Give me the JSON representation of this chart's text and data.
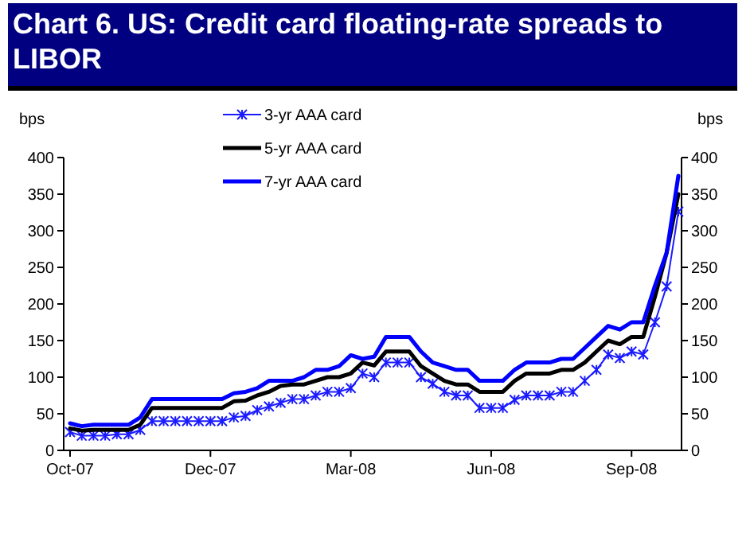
{
  "chart_data": {
    "type": "line",
    "title": "Chart 6. US: Credit card floating-rate spreads to LIBOR",
    "ylabel": "bps",
    "y2label": "bps",
    "categories": [
      "Oct-07",
      null,
      null,
      null,
      null,
      null,
      null,
      null,
      null,
      null,
      null,
      null,
      "Dec-07",
      null,
      null,
      null,
      null,
      null,
      null,
      null,
      null,
      null,
      null,
      null,
      "Mar-08",
      null,
      null,
      null,
      null,
      null,
      null,
      null,
      null,
      null,
      null,
      null,
      "Jun-08",
      null,
      null,
      null,
      null,
      null,
      null,
      null,
      null,
      null,
      null,
      null,
      "Sep-08",
      null,
      null,
      null,
      null
    ],
    "series": [
      {
        "name": "3-yr AAA card",
        "color": "#1a1aff",
        "marker": "cross",
        "values": [
          25,
          20,
          20,
          20,
          22,
          22,
          28,
          40,
          40,
          40,
          40,
          40,
          40,
          40,
          45,
          47,
          55,
          60,
          65,
          70,
          70,
          75,
          80,
          80,
          85,
          105,
          100,
          120,
          120,
          120,
          100,
          91,
          80,
          75,
          75,
          58,
          58,
          58,
          69,
          75,
          75,
          75,
          80,
          80,
          95,
          110,
          131,
          126,
          135,
          131,
          175,
          224,
          326
        ]
      },
      {
        "name": "5-yr AAA card",
        "color": "#000000",
        "marker": "none",
        "values": [
          30,
          27,
          28,
          28,
          28,
          28,
          35,
          58,
          58,
          58,
          58,
          58,
          58,
          58,
          67,
          68,
          75,
          80,
          88,
          90,
          90,
          95,
          100,
          100,
          105,
          120,
          116,
          135,
          135,
          135,
          115,
          105,
          95,
          90,
          90,
          80,
          80,
          80,
          95,
          105,
          105,
          105,
          110,
          110,
          120,
          135,
          150,
          145,
          155,
          155,
          210,
          270,
          350
        ]
      },
      {
        "name": "7-yr AAA card",
        "color": "#0000ff",
        "marker": "none",
        "values": [
          37,
          33,
          35,
          35,
          35,
          35,
          45,
          70,
          70,
          70,
          70,
          70,
          70,
          70,
          78,
          80,
          85,
          95,
          95,
          95,
          100,
          110,
          110,
          115,
          130,
          125,
          128,
          155,
          155,
          155,
          135,
          120,
          115,
          110,
          110,
          95,
          95,
          95,
          110,
          120,
          120,
          120,
          125,
          125,
          140,
          155,
          170,
          165,
          175,
          175,
          225,
          270,
          375
        ]
      }
    ],
    "ylim": [
      0,
      400
    ],
    "yticks": [
      0,
      50,
      100,
      150,
      200,
      250,
      300,
      350,
      400
    ],
    "y2lim": [
      0,
      400
    ],
    "y2ticks": [
      0,
      50,
      100,
      150,
      200,
      250,
      300,
      350,
      400
    ],
    "legend": "top",
    "grid": false
  }
}
